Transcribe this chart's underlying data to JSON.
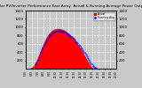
{
  "title": "Solar PV/Inverter Performance East Array  Actual & Running Average Power Output",
  "title_fontsize": 3.0,
  "bg_color": "#c8c8c8",
  "plot_bg_color": "#c8c8c8",
  "bar_color": "#ff0000",
  "bar_edge_color": "#dd0000",
  "avg_color": "#0000ff",
  "grid_color": "#ffffff",
  "x_labels": [
    "5:30",
    "6:30",
    "7:30",
    "8:30",
    "9:30",
    "10:30",
    "11:30",
    "12:30",
    "13:30",
    "14:30",
    "15:30",
    "16:30",
    "17:30",
    "18:30",
    "19:30",
    "20:30"
  ],
  "n_points": 90,
  "power_values": [
    0,
    0,
    2,
    5,
    10,
    18,
    30,
    50,
    80,
    120,
    170,
    220,
    280,
    340,
    400,
    460,
    520,
    580,
    640,
    690,
    740,
    780,
    820,
    855,
    880,
    905,
    925,
    940,
    952,
    960,
    965,
    968,
    970,
    968,
    964,
    958,
    950,
    940,
    928,
    912,
    895,
    875,
    855,
    832,
    808,
    782,
    755,
    726,
    696,
    664,
    630,
    595,
    558,
    520,
    480,
    440,
    398,
    356,
    312,
    268,
    224,
    180,
    138,
    98,
    62,
    35,
    15,
    5,
    1,
    0,
    0,
    0,
    0,
    0,
    0,
    0,
    0,
    0,
    0,
    0,
    0,
    0,
    0,
    0,
    0,
    0,
    0,
    0,
    0,
    0
  ],
  "avg_values": [
    null,
    null,
    null,
    null,
    null,
    null,
    null,
    null,
    null,
    null,
    100,
    150,
    210,
    270,
    340,
    400,
    460,
    515,
    568,
    615,
    660,
    700,
    738,
    772,
    802,
    828,
    850,
    868,
    882,
    893,
    900,
    905,
    907,
    908,
    906,
    902,
    896,
    888,
    878,
    866,
    852,
    837,
    820,
    802,
    782,
    762,
    740,
    716,
    692,
    666,
    638,
    610,
    580,
    548,
    516,
    482,
    447,
    410,
    372,
    332,
    292,
    252,
    212,
    172,
    135,
    100,
    72,
    48,
    30,
    18,
    null,
    null,
    null,
    null,
    null,
    null,
    null,
    null,
    null,
    null,
    null,
    null,
    null,
    null,
    null,
    null,
    null,
    null,
    null,
    null
  ],
  "ylim": [
    0,
    1400
  ],
  "ytick_vals": [
    200,
    400,
    600,
    800,
    1000,
    1200,
    1400
  ],
  "figsize": [
    1.6,
    1.0
  ],
  "dpi": 100
}
